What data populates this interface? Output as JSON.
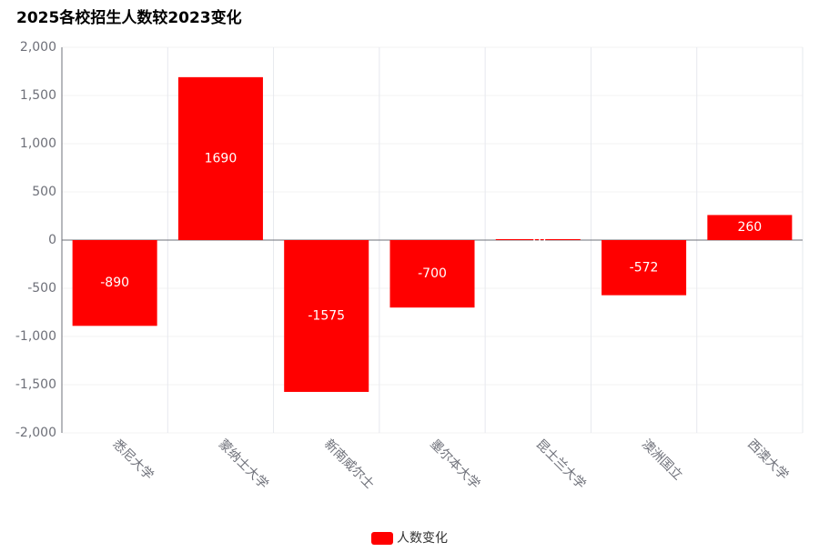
{
  "chart_data": {
    "type": "bar",
    "title": "2025各校招生人数较2023变化",
    "categories": [
      "悉尼大学",
      "蒙纳士大学",
      "新南威尔士",
      "墨尔本大学",
      "昆士兰大学",
      "澳洲国立",
      "西澳大学"
    ],
    "series": [
      {
        "name": "人数变化",
        "color": "#ff0000",
        "values": [
          -890,
          1690,
          -1575,
          -700,
          10,
          -572,
          260
        ]
      }
    ],
    "ylim": [
      -2000,
      2000
    ],
    "yticks": [
      {
        "value": -2000,
        "label": "-2,000"
      },
      {
        "value": -1500,
        "label": "-1,500"
      },
      {
        "value": -1000,
        "label": "-1,000"
      },
      -500,
      0,
      500,
      {
        "value": 1000,
        "label": "1,000"
      },
      {
        "value": 1500,
        "label": "1,500"
      },
      {
        "value": 2000,
        "label": "2,000"
      }
    ],
    "grid": true,
    "legend": "bottom"
  }
}
